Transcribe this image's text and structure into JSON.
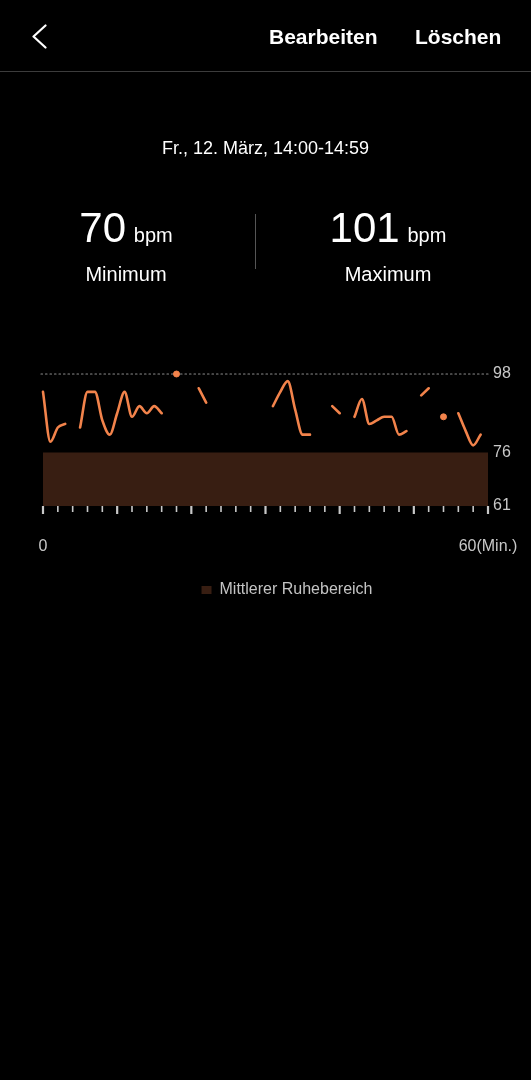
{
  "chart_data": {
    "type": "line",
    "title": "Fr., 12. März, 14:00-14:59",
    "annotations": [
      "Bearbeiten",
      "Löschen",
      "70 bpm",
      "Minimum",
      "101 bpm",
      "Maximum"
    ],
    "x": [
      0,
      1,
      2,
      3,
      4,
      5,
      6,
      7,
      8,
      9,
      10,
      11,
      12,
      13,
      14,
      15,
      16,
      17,
      18,
      19,
      20,
      21,
      22,
      23,
      24,
      25,
      26,
      27,
      28,
      29,
      30,
      31,
      32,
      33,
      34,
      35,
      36,
      37,
      38,
      39,
      40,
      41,
      42,
      43,
      44,
      45,
      46,
      47,
      48,
      49,
      50,
      51,
      52,
      53,
      54,
      55,
      56,
      57,
      58,
      59
    ],
    "series": [
      {
        "color": "#f2834b",
        "values": [
          93,
          79,
          83,
          84,
          null,
          83,
          93,
          93,
          85,
          81,
          87,
          93,
          86,
          89,
          87,
          89,
          87,
          null,
          null,
          null,
          null,
          94,
          90,
          null,
          null,
          null,
          null,
          null,
          null,
          null,
          null,
          89,
          93,
          96,
          88,
          81,
          81,
          null,
          null,
          89,
          87,
          null,
          86,
          91,
          84,
          85,
          86,
          86,
          81,
          82,
          null,
          92,
          94,
          null,
          null,
          null,
          87,
          82,
          78,
          81
        ]
      },
      {
        "type": "scatter",
        "x": [
          18,
          54
        ],
        "values": [
          98,
          86
        ],
        "color": "#f2834b",
        "marker": "circle"
      }
    ],
    "xlim": [
      0,
      60
    ],
    "xticks": [
      0,
      {
        "value": 2,
        "label": null
      },
      {
        "value": 4,
        "label": null
      },
      {
        "value": 6,
        "label": null
      },
      {
        "value": 8,
        "label": null
      },
      {
        "value": 10,
        "label": null
      },
      {
        "value": 12,
        "label": null
      },
      {
        "value": 14,
        "label": null
      },
      {
        "value": 16,
        "label": null
      },
      {
        "value": 18,
        "label": null
      },
      {
        "value": 20,
        "label": null
      },
      {
        "value": 22,
        "label": null
      },
      {
        "value": 24,
        "label": null
      },
      {
        "value": 26,
        "label": null
      },
      {
        "value": 28,
        "label": null
      },
      {
        "value": 30,
        "label": null
      },
      {
        "value": 32,
        "label": null
      },
      {
        "value": 34,
        "label": null
      },
      {
        "value": 36,
        "label": null
      },
      {
        "value": 38,
        "label": null
      },
      {
        "value": 40,
        "label": null
      },
      {
        "value": 42,
        "label": null
      },
      {
        "value": 44,
        "label": null
      },
      {
        "value": 46,
        "label": null
      },
      {
        "value": 48,
        "label": null
      },
      {
        "value": 50,
        "label": null
      },
      {
        "value": 52,
        "label": null
      },
      {
        "value": 54,
        "label": null
      },
      {
        "value": 56,
        "label": null
      },
      {
        "value": 58,
        "label": null
      },
      {
        "value": 60,
        "label": "60(Min.)"
      }
    ],
    "ylim": [
      61,
      98
    ],
    "yticks": [
      98,
      76,
      61
    ],
    "ref_lines": [
      {
        "axis": "y",
        "value": 98,
        "color": "#8c8c8c",
        "line_style": "dotted"
      }
    ],
    "bands": [
      {
        "axis": "y",
        "from": 61,
        "to": 76,
        "label": "Mittlerer Ruhebereich",
        "color": "#381e12"
      }
    ],
    "legend": "bottom"
  }
}
